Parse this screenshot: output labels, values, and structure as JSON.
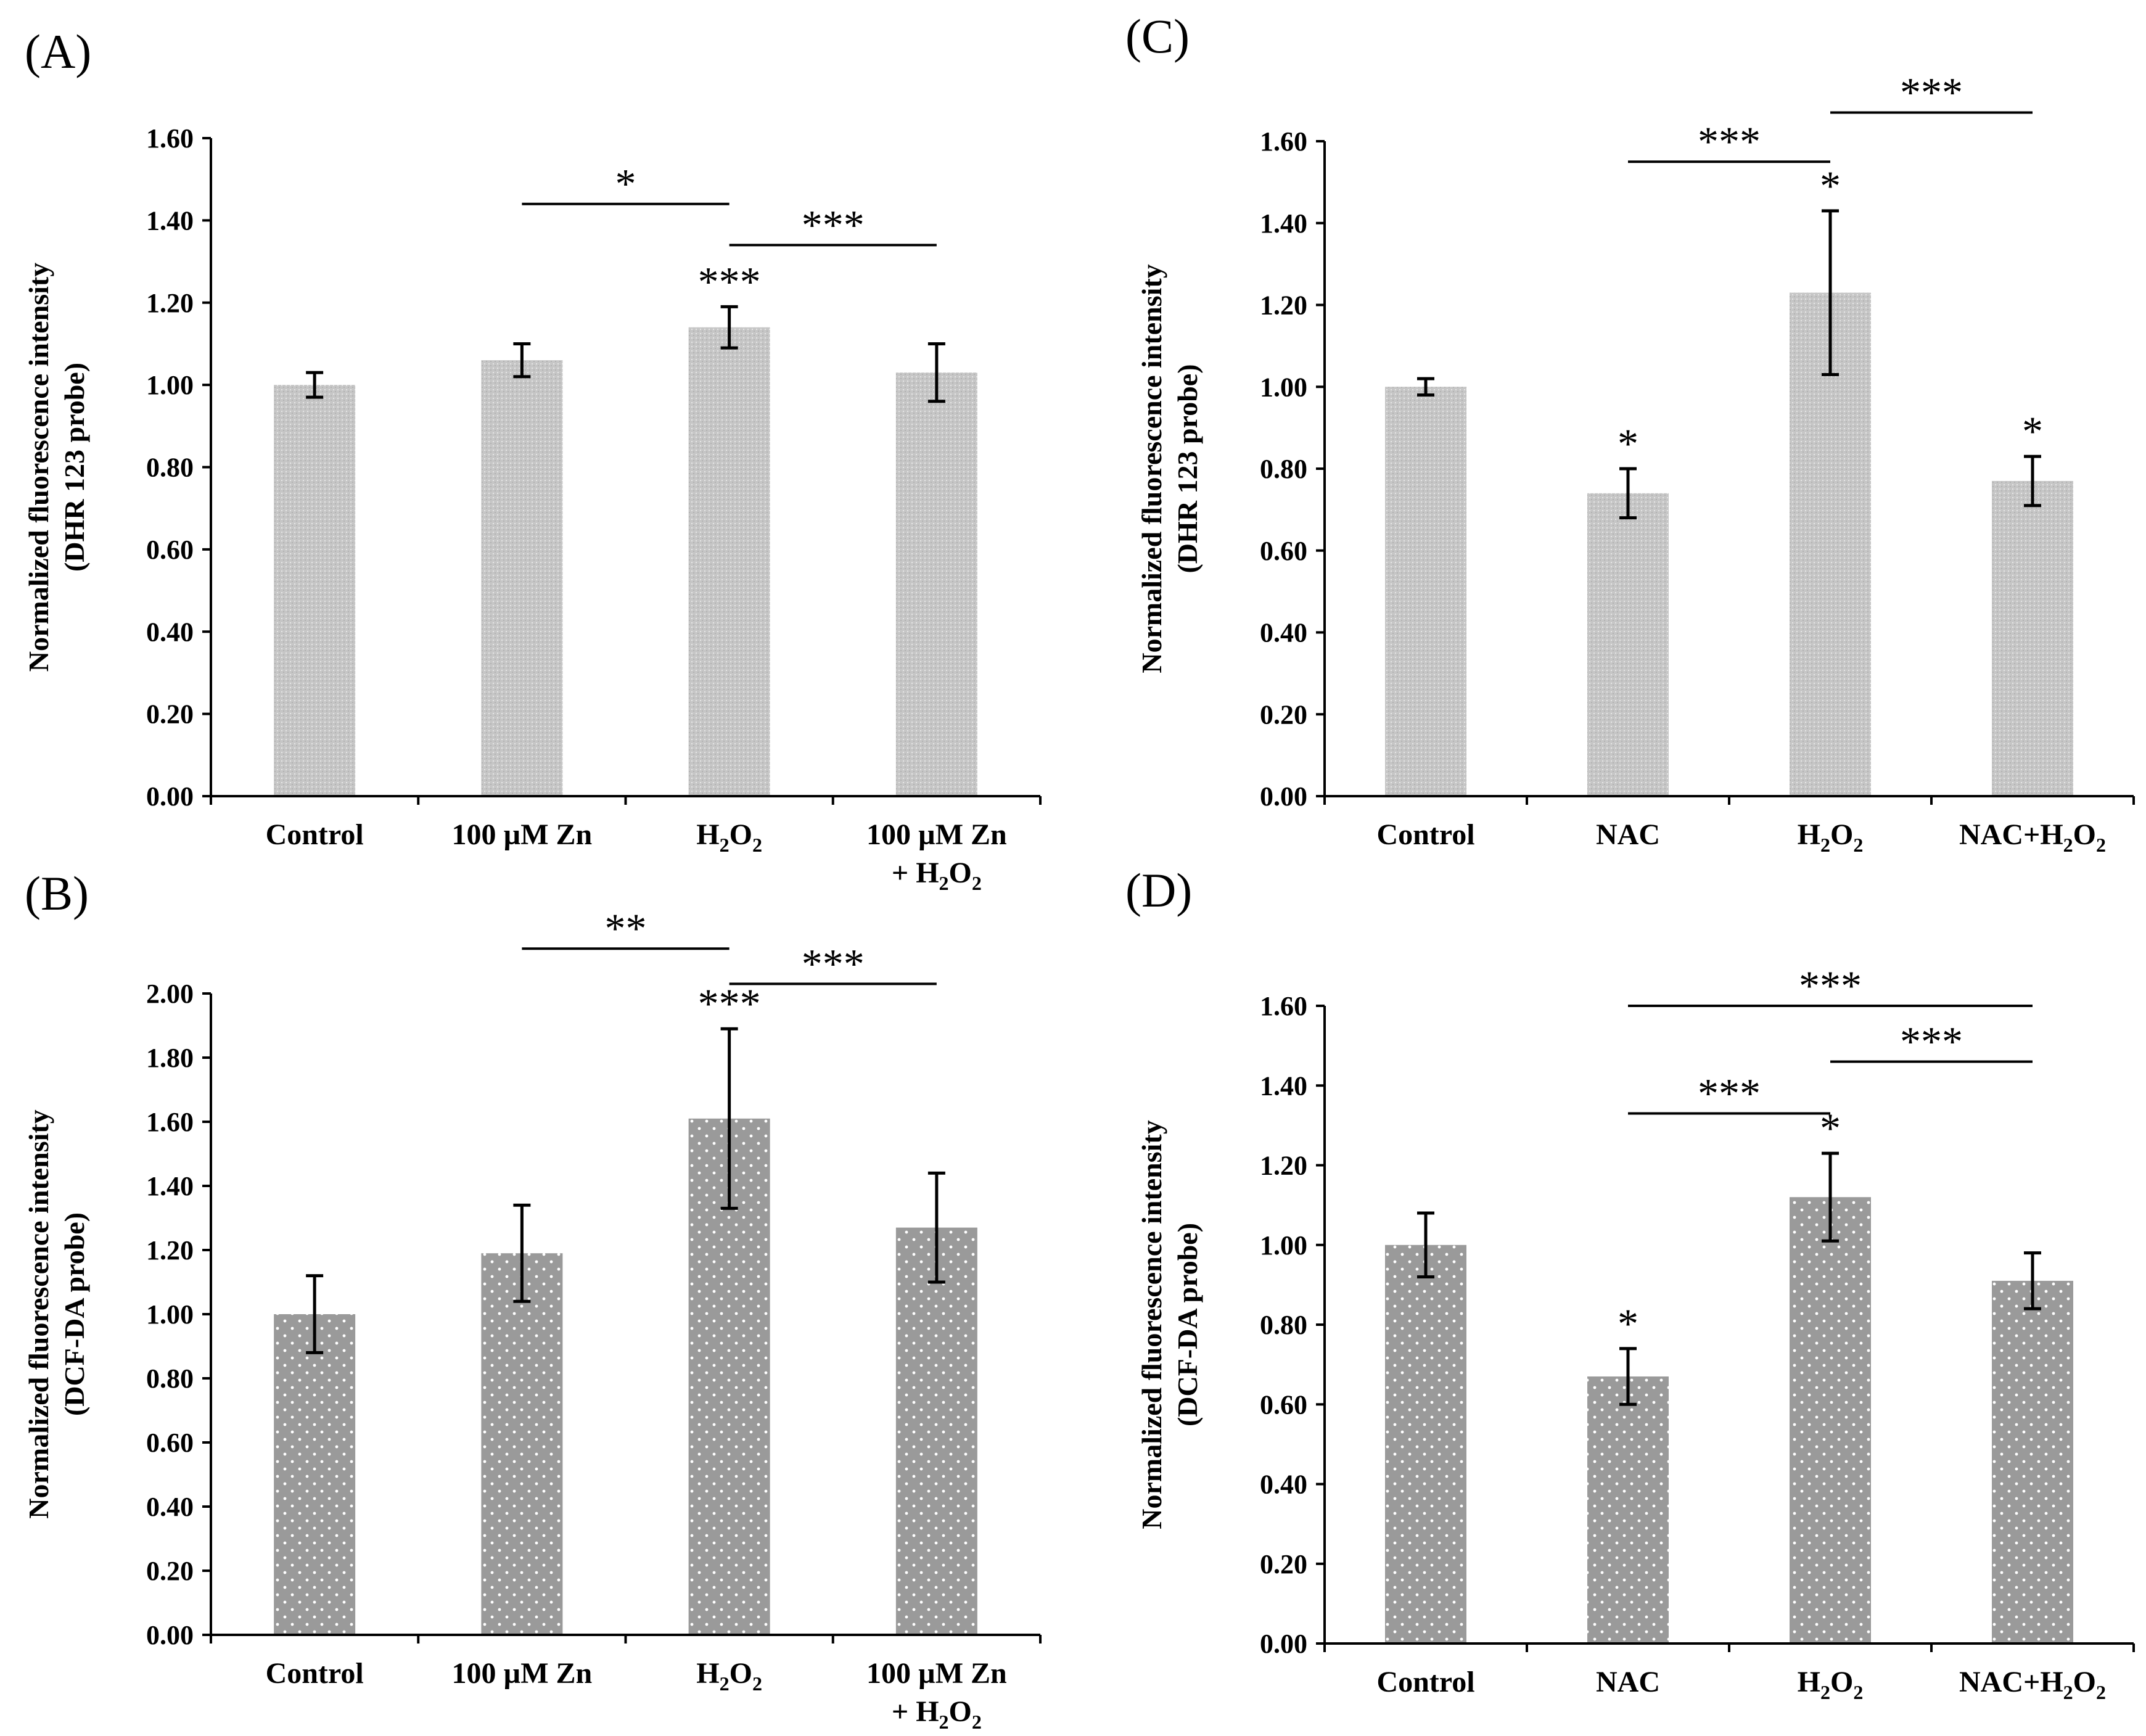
{
  "figure": {
    "panel_labels": [
      "(A)",
      "(B)",
      "(C)",
      "(D)"
    ],
    "colors": {
      "dhr_bar": "#c8c8c8",
      "dcf_bar": "#9a9a9a",
      "axis": "#000000",
      "dot": "#ffffff"
    }
  },
  "chart_data": [
    {
      "id": "A",
      "type": "bar",
      "title": "(A)",
      "style": "light",
      "ylabel_line1": "Normalized fluorescence intensity",
      "ylabel_line2": "(DHR 123 probe)",
      "xlabel": "",
      "ylim": [
        0,
        1.6
      ],
      "yticks": [
        "0.00",
        "0.20",
        "0.40",
        "0.60",
        "0.80",
        "1.00",
        "1.20",
        "1.40",
        "1.60"
      ],
      "categories": [
        {
          "line1": "Control",
          "line2": ""
        },
        {
          "line1": "100 µM Zn",
          "line2": ""
        },
        {
          "line1": "H",
          "sub1": "2",
          "mid1": "O",
          "sub2": "2",
          "line2": ""
        },
        {
          "line1": "100 µM Zn",
          "line2": "+ H",
          "l2sub1": "2",
          "l2mid": "O",
          "l2sub2": "2"
        }
      ],
      "values": [
        1.0,
        1.06,
        1.14,
        1.03
      ],
      "errors": [
        0.03,
        0.04,
        0.05,
        0.07
      ],
      "bar_stars": [
        "",
        "",
        "***",
        ""
      ],
      "brackets": [
        {
          "from": 1,
          "to": 2,
          "y": 1.44,
          "label": "*"
        },
        {
          "from": 2,
          "to": 3,
          "y": 1.34,
          "label": "***"
        }
      ]
    },
    {
      "id": "B",
      "type": "bar",
      "title": "(B)",
      "style": "dark",
      "ylabel_line1": "Normalized fluorescence intensity",
      "ylabel_line2": "(DCF-DA probe)",
      "xlabel": "",
      "ylim": [
        0,
        2.0
      ],
      "yticks": [
        "0.00",
        "0.20",
        "0.40",
        "0.60",
        "0.80",
        "1.00",
        "1.20",
        "1.40",
        "1.60",
        "1.80",
        "2.00"
      ],
      "categories": [
        {
          "line1": "Control",
          "line2": ""
        },
        {
          "line1": "100 µM Zn",
          "line2": ""
        },
        {
          "line1": "H",
          "sub1": "2",
          "mid1": "O",
          "sub2": "2",
          "line2": ""
        },
        {
          "line1": "100 µM Zn",
          "line2": "+ H",
          "l2sub1": "2",
          "l2mid": "O",
          "l2sub2": "2"
        }
      ],
      "values": [
        1.0,
        1.19,
        1.61,
        1.27
      ],
      "errors": [
        0.12,
        0.15,
        0.28,
        0.17
      ],
      "bar_stars": [
        "",
        "",
        "***",
        ""
      ],
      "brackets": [
        {
          "from": 1,
          "to": 2,
          "y": 2.14,
          "label": "**"
        },
        {
          "from": 2,
          "to": 3,
          "y": 2.03,
          "label": "***"
        }
      ]
    },
    {
      "id": "C",
      "type": "bar",
      "title": "(C)",
      "style": "light",
      "ylabel_line1": "Normalized fluorescence intensity",
      "ylabel_line2": "(DHR 123 probe)",
      "xlabel": "",
      "ylim": [
        0,
        1.6
      ],
      "yticks": [
        "0.00",
        "0.20",
        "0.40",
        "0.60",
        "0.80",
        "1.00",
        "1.20",
        "1.40",
        "1.60"
      ],
      "categories": [
        {
          "line1": "Control",
          "line2": ""
        },
        {
          "line1": "NAC",
          "line2": ""
        },
        {
          "line1": "H",
          "sub1": "2",
          "mid1": "O",
          "sub2": "2",
          "line2": ""
        },
        {
          "line1": "NAC+H",
          "sub1": "2",
          "mid1": "O",
          "sub2": "2",
          "line2": ""
        }
      ],
      "values": [
        1.0,
        0.74,
        1.23,
        0.77
      ],
      "errors": [
        0.02,
        0.06,
        0.2,
        0.06
      ],
      "bar_stars": [
        "",
        "*",
        "*",
        "*"
      ],
      "brackets": [
        {
          "from": 1,
          "to": 2,
          "y": 1.55,
          "label": "***"
        },
        {
          "from": 2,
          "to": 3,
          "y": 1.67,
          "label": "***"
        }
      ]
    },
    {
      "id": "D",
      "type": "bar",
      "title": "(D)",
      "style": "dark",
      "ylabel_line1": "Normalized fluorescence intensity",
      "ylabel_line2": "(DCF-DA probe)",
      "xlabel": "",
      "ylim": [
        0,
        1.6
      ],
      "yticks": [
        "0.00",
        "0.20",
        "0.40",
        "0.60",
        "0.80",
        "1.00",
        "1.20",
        "1.40",
        "1.60"
      ],
      "categories": [
        {
          "line1": "Control",
          "line2": ""
        },
        {
          "line1": "NAC",
          "line2": ""
        },
        {
          "line1": "H",
          "sub1": "2",
          "mid1": "O",
          "sub2": "2",
          "line2": ""
        },
        {
          "line1": "NAC+H",
          "sub1": "2",
          "mid1": "O",
          "sub2": "2",
          "line2": ""
        }
      ],
      "values": [
        1.0,
        0.67,
        1.12,
        0.91
      ],
      "errors": [
        0.08,
        0.07,
        0.11,
        0.07
      ],
      "bar_stars": [
        "",
        "*",
        "*",
        ""
      ],
      "brackets": [
        {
          "from": 1,
          "to": 3,
          "y": 1.6,
          "label": "***"
        },
        {
          "from": 2,
          "to": 3,
          "y": 1.46,
          "label": "***"
        },
        {
          "from": 1,
          "to": 2,
          "y": 1.33,
          "label": "***"
        }
      ]
    }
  ]
}
